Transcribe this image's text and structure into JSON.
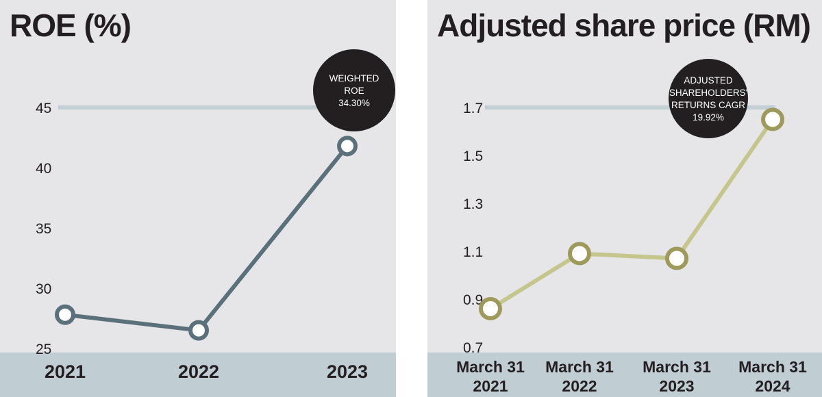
{
  "chart_data": [
    {
      "type": "line",
      "title": "ROE (%)",
      "categories": [
        "2021",
        "2022",
        "2023"
      ],
      "values": [
        27.8,
        26.5,
        41.8
      ],
      "yticks": [
        25,
        30,
        35,
        40,
        45
      ],
      "ylim": [
        25,
        45
      ],
      "reference_line": 45,
      "annotation": [
        "WEIGHTED",
        "ROE",
        "34.30%"
      ],
      "colors": {
        "line": "#5a707b",
        "reference": "#c1ced4",
        "badge": "#231f20",
        "band": "#c0cdd3",
        "background": "#e6e6e8"
      }
    },
    {
      "type": "line",
      "title": "Adjusted share price (RM)",
      "categories": [
        [
          "March 31",
          "2021"
        ],
        [
          "March 31",
          "2022"
        ],
        [
          "March 31",
          "2023"
        ],
        [
          "March 31",
          "2024"
        ]
      ],
      "values": [
        0.86,
        1.09,
        1.07,
        1.65
      ],
      "yticks": [
        "0.7",
        "0.9",
        "1.1",
        "1.3",
        "1.5",
        "1.7"
      ],
      "ylim": [
        0.7,
        1.7
      ],
      "reference_line": 1.7,
      "annotation": [
        "ADJUSTED",
        "SHAREHOLDERS'",
        "RETURNS CAGR",
        "19.92%"
      ],
      "colors": {
        "line": "#c4c68c",
        "marker": "#9d9a5b",
        "reference": "#c1ced4",
        "badge": "#231f20",
        "band": "#c0cdd3",
        "background": "#e6e6e8"
      }
    }
  ]
}
